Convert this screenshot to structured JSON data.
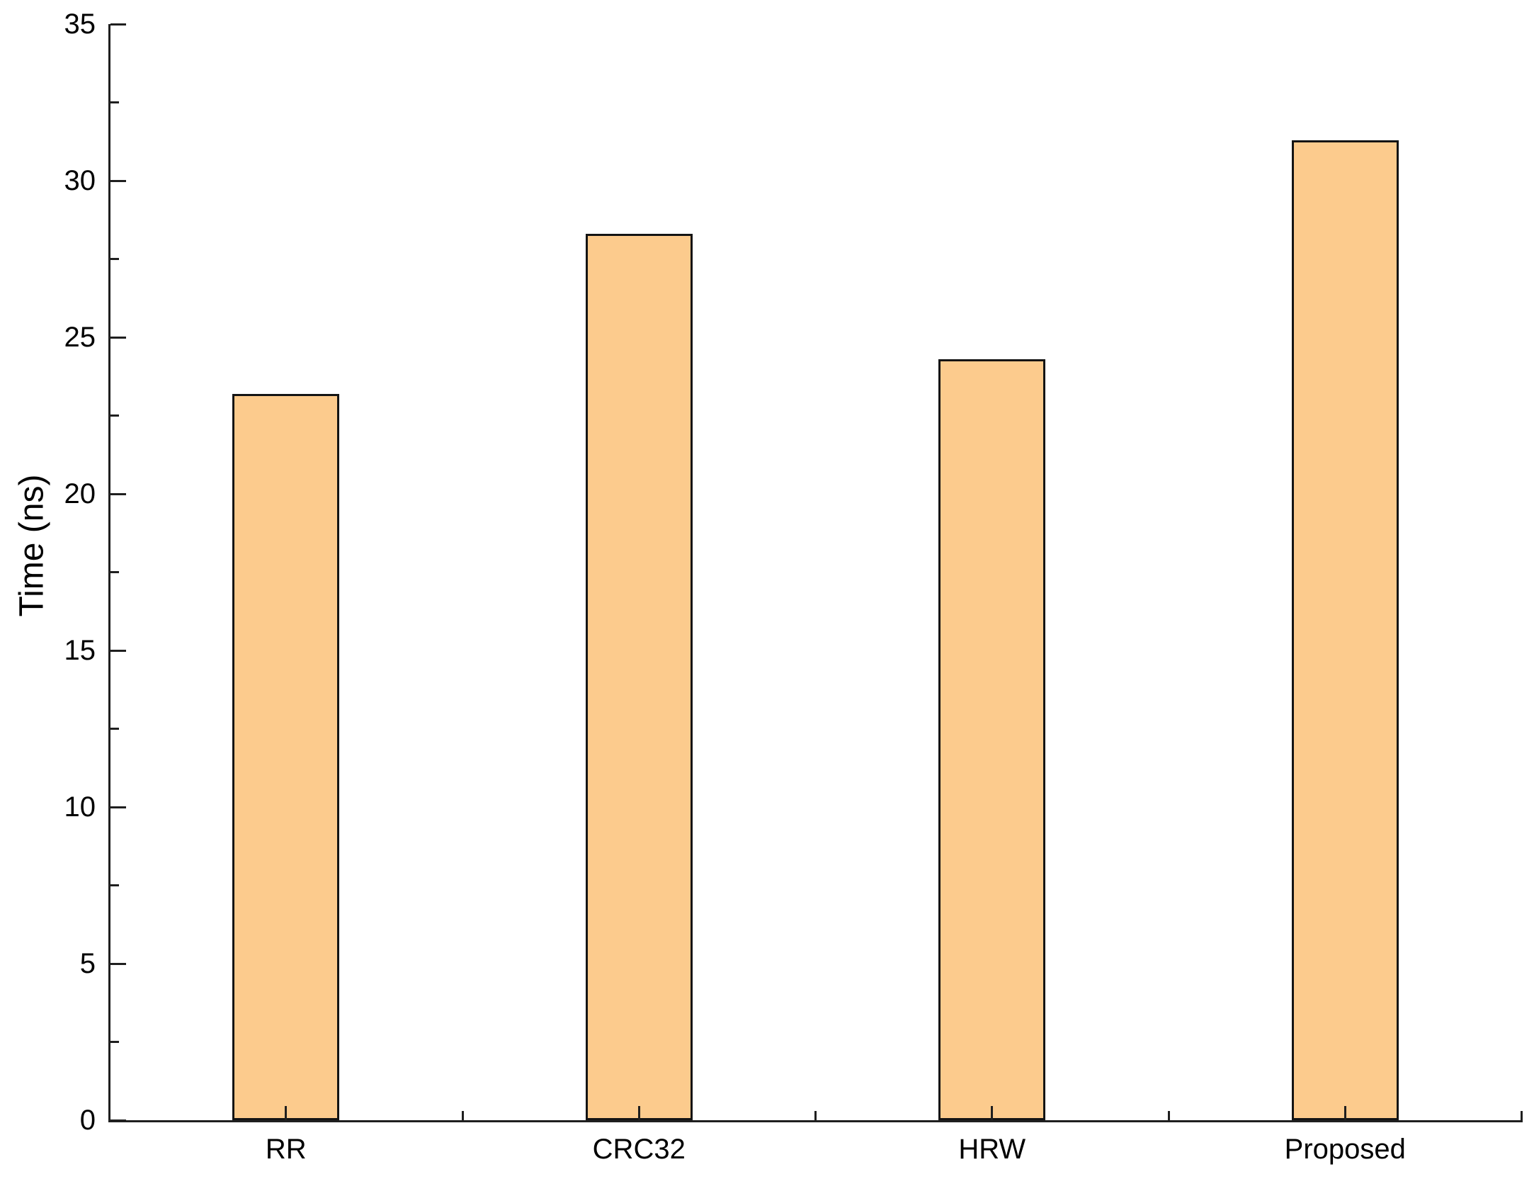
{
  "chart_data": {
    "type": "bar",
    "title": "",
    "xlabel": "",
    "ylabel": "Time (ns)",
    "categories": [
      "RR",
      "CRC32",
      "HRW",
      "Proposed"
    ],
    "values": [
      23.2,
      28.3,
      24.3,
      31.3
    ],
    "ylim": [
      0,
      35
    ],
    "y_major_tick_step": 5,
    "y_minor_tick_step": 2.5,
    "y_tick_labels": [
      "0",
      "5",
      "10",
      "15",
      "20",
      "25",
      "30",
      "35"
    ],
    "grid": false,
    "legend_position": "none",
    "bar_width_fraction": 0.303,
    "bar_fill": "#FCCB8D",
    "bar_edge": "#141414",
    "axis_color": "#1f1f1f",
    "text_color": "#000000",
    "background": "#ffffff"
  }
}
